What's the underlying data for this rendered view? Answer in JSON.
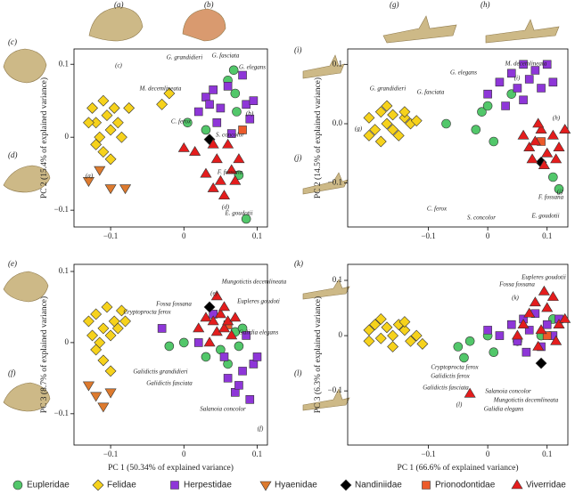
{
  "panel_labels": [
    "(a)",
    "(b)",
    "(c)",
    "(d)",
    "(e)",
    "(f)",
    "(g)",
    "(h)",
    "(i)",
    "(j)",
    "(k)",
    "(l)"
  ],
  "chart_data": [
    {
      "type": "scatter",
      "y_label": "PC 2 (15.4% of explained variance)",
      "xlim": [
        -0.15,
        0.114
      ],
      "ylim": [
        -0.123,
        0.121
      ],
      "xticks": [
        {
          "value": -0.1,
          "label": "−0.1"
        },
        0,
        0.1
      ],
      "yticks": [
        {
          "value": -0.1,
          "label": "−0.1"
        },
        0,
        0.1
      ],
      "annotations": [
        "G. grandidieri",
        "G. fasciata",
        "G. elegans",
        "M. decemlineata",
        "C. ferox",
        "S. concolor",
        "F. fossana",
        "E. goudotii",
        "(c)",
        "(a)",
        "(b)",
        "(d)"
      ],
      "series": [
        {
          "name": "Eupleridae",
          "color": "#52c76a",
          "marker": "circle",
          "x": [
            0.005,
            0.03,
            0.06,
            0.068,
            0.07,
            0.072,
            0.075,
            0.085
          ],
          "y": [
            0.02,
            0.01,
            0.078,
            0.092,
            0.06,
            0.035,
            -0.052,
            -0.112
          ]
        },
        {
          "name": "Felidae",
          "color": "#f6d21c",
          "marker": "diamond",
          "x": [
            -0.125,
            -0.12,
            -0.115,
            -0.11,
            -0.105,
            -0.1,
            -0.095,
            -0.09,
            -0.085,
            -0.12,
            -0.11,
            -0.1,
            -0.13,
            -0.075,
            -0.03,
            -0.02
          ],
          "y": [
            0.04,
            0.02,
            0.0,
            0.05,
            0.03,
            0.01,
            0.04,
            0.02,
            0.0,
            -0.01,
            -0.02,
            -0.03,
            0.02,
            0.04,
            0.045,
            0.06
          ]
        },
        {
          "name": "Herpestidae",
          "color": "#8e36d8",
          "marker": "square",
          "x": [
            0.02,
            0.03,
            0.035,
            0.04,
            0.045,
            0.05,
            0.06,
            0.065,
            0.08,
            0.085,
            0.09,
            0.095
          ],
          "y": [
            0.035,
            0.055,
            0.045,
            0.065,
            0.02,
            0.04,
            0.07,
            0.005,
            0.085,
            0.045,
            0.025,
            0.05
          ]
        },
        {
          "name": "Hyaenidae",
          "color": "#dd7a2e",
          "marker": "triangle-down",
          "x": [
            -0.13,
            -0.115,
            -0.1,
            -0.08
          ],
          "y": [
            -0.06,
            -0.045,
            -0.07,
            -0.07
          ]
        },
        {
          "name": "Nandiniidae",
          "color": "#000000",
          "marker": "diamond",
          "x": [
            0.035
          ],
          "y": [
            -0.003
          ]
        },
        {
          "name": "Prionodontidae",
          "color": "#ec5a2a",
          "marker": "square",
          "x": [
            0.08
          ],
          "y": [
            0.01
          ]
        },
        {
          "name": "Viverridae",
          "color": "#e41d1d",
          "marker": "triangle-up",
          "x": [
            0.0,
            0.015,
            0.03,
            0.04,
            0.045,
            0.05,
            0.055,
            0.06,
            0.065,
            0.07,
            0.075,
            0.04
          ],
          "y": [
            -0.015,
            -0.02,
            -0.05,
            -0.07,
            -0.03,
            -0.06,
            -0.08,
            -0.01,
            -0.045,
            -0.06,
            -0.03,
            -0.01
          ]
        }
      ]
    },
    {
      "type": "scatter",
      "y_label": "PC 2 (14.5% of explained variance)",
      "xlim": [
        -0.236,
        0.135
      ],
      "ylim": [
        -0.174,
        0.126
      ],
      "xticks": [
        {
          "value": -0.1,
          "label": "−0.1"
        },
        0,
        0.1
      ],
      "yticks": [
        {
          "value": -0.1,
          "label": "−0.1"
        },
        {
          "value": 0,
          "label": "0.0"
        },
        0.1
      ],
      "annotations": [
        "G. grandidieri",
        "G. elegans",
        "M. decemlineata",
        "G. fasciata",
        "C. ferox",
        "S. concolor",
        "F. fossana",
        "E. goudotii",
        "(g)",
        "(i)",
        "(h)",
        "(j)"
      ],
      "series": [
        {
          "name": "Eupleridae",
          "color": "#52c76a",
          "marker": "circle",
          "x": [
            -0.07,
            -0.02,
            -0.01,
            0.0,
            0.01,
            0.04,
            0.11,
            0.12
          ],
          "y": [
            0.0,
            -0.01,
            0.02,
            0.03,
            -0.03,
            0.05,
            -0.09,
            -0.11
          ]
        },
        {
          "name": "Felidae",
          "color": "#f6d21c",
          "marker": "diamond",
          "x": [
            -0.2,
            -0.19,
            -0.18,
            -0.17,
            -0.16,
            -0.15,
            -0.14,
            -0.13,
            -0.2,
            -0.18,
            -0.16,
            -0.14,
            -0.12,
            -0.17
          ],
          "y": [
            0.01,
            -0.01,
            0.02,
            0.0,
            0.015,
            -0.02,
            0.01,
            0.0,
            -0.02,
            -0.03,
            -0.01,
            0.02,
            0.005,
            0.03
          ]
        },
        {
          "name": "Herpestidae",
          "color": "#8e36d8",
          "marker": "square",
          "x": [
            0.0,
            0.02,
            0.04,
            0.05,
            0.06,
            0.07,
            0.08,
            0.09,
            0.1,
            0.11,
            0.03,
            0.06
          ],
          "y": [
            0.05,
            0.07,
            0.085,
            0.06,
            0.1,
            0.075,
            0.09,
            0.06,
            0.1,
            0.07,
            0.03,
            0.04
          ]
        },
        {
          "name": "Nandiniidae",
          "color": "#000000",
          "marker": "diamond",
          "x": [
            0.09
          ],
          "y": [
            -0.065
          ]
        },
        {
          "name": "Prionodontidae",
          "color": "#ec5a2a",
          "marker": "square",
          "x": [
            0.09
          ],
          "y": [
            -0.03
          ]
        },
        {
          "name": "Viverridae",
          "color": "#e41d1d",
          "marker": "triangle-up",
          "x": [
            0.06,
            0.07,
            0.08,
            0.09,
            0.1,
            0.11,
            0.12,
            0.13,
            0.075,
            0.095,
            0.115,
            0.085
          ],
          "y": [
            -0.02,
            -0.04,
            -0.03,
            -0.01,
            -0.05,
            -0.02,
            -0.04,
            -0.01,
            -0.06,
            -0.07,
            -0.06,
            0.0
          ]
        }
      ]
    },
    {
      "type": "scatter",
      "x_label": "PC 1 (50.34% of explained variance)",
      "y_label": "PC 3 (8.7% of explained variance)",
      "xlim": [
        -0.15,
        0.114
      ],
      "ylim": [
        -0.144,
        0.11
      ],
      "xticks": [
        {
          "value": -0.1,
          "label": "−0.1"
        },
        0,
        0.1
      ],
      "yticks": [
        {
          "value": -0.1,
          "label": "−0.1"
        },
        0,
        0.1
      ],
      "annotations": [
        "Fossa fossana",
        "Cryptoprocta ferox",
        "Mungotictis decemlineata",
        "Eupleres goudoti",
        "Galidia elegans",
        "Galidictis grandidieri",
        "Galidictis fasciata",
        "Salanoia concolor",
        "(e)",
        "(f)"
      ],
      "series": [
        {
          "name": "Eupleridae",
          "color": "#52c76a",
          "marker": "circle",
          "x": [
            -0.02,
            0.0,
            0.03,
            0.05,
            0.06,
            0.07,
            0.075,
            0.08
          ],
          "y": [
            -0.005,
            0.0,
            -0.02,
            -0.01,
            -0.03,
            0.015,
            -0.005,
            0.02
          ]
        },
        {
          "name": "Felidae",
          "color": "#f6d21c",
          "marker": "diamond",
          "x": [
            -0.13,
            -0.125,
            -0.12,
            -0.115,
            -0.11,
            -0.105,
            -0.1,
            -0.095,
            -0.09,
            -0.085,
            -0.12,
            -0.11,
            -0.1,
            -0.08
          ],
          "y": [
            0.03,
            0.01,
            0.04,
            0.0,
            0.02,
            0.05,
            0.01,
            0.03,
            0.02,
            0.045,
            -0.01,
            -0.025,
            -0.04,
            0.03
          ]
        },
        {
          "name": "Herpestidae",
          "color": "#8e36d8",
          "marker": "square",
          "x": [
            -0.03,
            0.02,
            0.04,
            0.055,
            0.06,
            0.07,
            0.08,
            0.085,
            0.09,
            0.095,
            0.1,
            0.075
          ],
          "y": [
            0.02,
            0.0,
            0.04,
            -0.02,
            -0.05,
            -0.07,
            -0.04,
            0.01,
            -0.08,
            -0.03,
            -0.02,
            -0.06
          ]
        },
        {
          "name": "Hyaenidae",
          "color": "#dd7a2e",
          "marker": "triangle-down",
          "x": [
            -0.13,
            -0.12,
            -0.11,
            -0.1
          ],
          "y": [
            -0.06,
            -0.075,
            -0.09,
            -0.07
          ]
        },
        {
          "name": "Nandiniidae",
          "color": "#000000",
          "marker": "diamond",
          "x": [
            0.035
          ],
          "y": [
            0.05
          ]
        },
        {
          "name": "Prionodontidae",
          "color": "#ec5a2a",
          "marker": "square",
          "x": [
            0.06
          ],
          "y": [
            0.025
          ]
        },
        {
          "name": "Viverridae",
          "color": "#e41d1d",
          "marker": "triangle-up",
          "x": [
            0.02,
            0.03,
            0.035,
            0.04,
            0.045,
            0.05,
            0.055,
            0.06,
            0.065,
            0.07,
            0.045,
            0.055
          ],
          "y": [
            0.02,
            0.035,
            0.0,
            0.03,
            0.015,
            0.04,
            0.02,
            0.03,
            0.01,
            0.035,
            0.065,
            0.05
          ]
        }
      ]
    },
    {
      "type": "scatter",
      "x_label": "PC 1 (66.6% of explained variance)",
      "y_label": "PC 3 (6.3% of explained variance)",
      "xlim": [
        -0.236,
        0.135
      ],
      "ylim": [
        -0.198,
        0.129
      ],
      "xticks": [
        {
          "value": -0.1,
          "label": "−0.1"
        },
        0,
        0.1
      ],
      "yticks": [
        {
          "value": -0.1,
          "label": "−0.1"
        },
        0,
        0.1
      ],
      "annotations": [
        "Eupleres goudotii",
        "Fossa fossana",
        "Cryptoprocta ferox",
        "Galidictis ferox",
        "Galidictis fasciata",
        "Mungotictis decemlineata",
        "Salanoia concolor",
        "Galidia elegans",
        "(k)",
        "(l)"
      ],
      "series": [
        {
          "name": "Eupleridae",
          "color": "#52c76a",
          "marker": "circle",
          "x": [
            -0.05,
            -0.04,
            -0.03,
            0.0,
            0.01,
            0.05,
            0.09,
            0.11
          ],
          "y": [
            -0.02,
            -0.04,
            -0.01,
            0.0,
            -0.03,
            -0.01,
            0.0,
            0.03
          ]
        },
        {
          "name": "Felidae",
          "color": "#f6d21c",
          "marker": "diamond",
          "x": [
            -0.2,
            -0.19,
            -0.18,
            -0.17,
            -0.16,
            -0.15,
            -0.14,
            -0.13,
            -0.2,
            -0.18,
            -0.16,
            -0.14,
            -0.12,
            -0.11
          ],
          "y": [
            0.01,
            0.02,
            -0.005,
            0.015,
            0.0,
            0.02,
            0.01,
            -0.01,
            -0.01,
            0.03,
            -0.02,
            0.025,
            0.0,
            -0.015
          ]
        },
        {
          "name": "Herpestidae",
          "color": "#8e36d8",
          "marker": "square",
          "x": [
            0.0,
            0.02,
            0.04,
            0.05,
            0.06,
            0.07,
            0.08,
            0.09,
            0.1,
            0.11,
            0.12,
            0.065
          ],
          "y": [
            0.01,
            0.0,
            0.02,
            -0.01,
            0.03,
            0.01,
            0.04,
            -0.02,
            0.02,
            0.0,
            0.03,
            -0.03
          ]
        },
        {
          "name": "Nandiniidae",
          "color": "#000000",
          "marker": "diamond",
          "x": [
            0.09
          ],
          "y": [
            -0.05
          ]
        },
        {
          "name": "Prionodontidae",
          "color": "#ec5a2a",
          "marker": "square",
          "x": [
            0.1
          ],
          "y": [
            0.0
          ]
        },
        {
          "name": "Viverridae",
          "color": "#e41d1d",
          "marker": "triangle-up",
          "x": [
            0.05,
            0.06,
            0.07,
            0.08,
            0.09,
            0.1,
            0.11,
            0.12,
            0.13,
            0.085,
            0.095,
            0.115,
            -0.03
          ],
          "y": [
            0.0,
            0.02,
            0.04,
            0.06,
            0.01,
            0.05,
            0.07,
            0.02,
            0.03,
            -0.02,
            0.08,
            -0.01,
            -0.105
          ]
        }
      ]
    }
  ]
}
